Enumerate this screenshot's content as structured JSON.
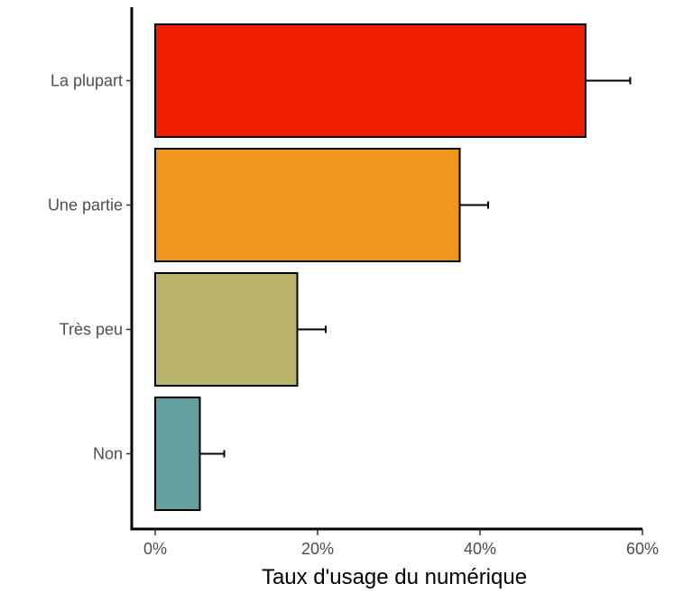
{
  "chart_data": {
    "type": "bar",
    "orientation": "horizontal",
    "title": "",
    "xlabel": "Taux d'usage du numérique",
    "ylabel": "",
    "categories": [
      "La plupart",
      "Une partie",
      "Très peu",
      "Non"
    ],
    "values": [
      53,
      37.5,
      17.5,
      5.5
    ],
    "error_upper": [
      58.5,
      41,
      21,
      8.5
    ],
    "colors": [
      "#f01e00",
      "#f0961e",
      "#bab46c",
      "#64a0a0"
    ],
    "xlim": [
      0,
      60
    ],
    "x_ticks": [
      0,
      20,
      40,
      60
    ],
    "x_tick_labels": [
      "0%",
      "20%",
      "40%",
      "60%"
    ],
    "grid": false,
    "legend": "none"
  }
}
